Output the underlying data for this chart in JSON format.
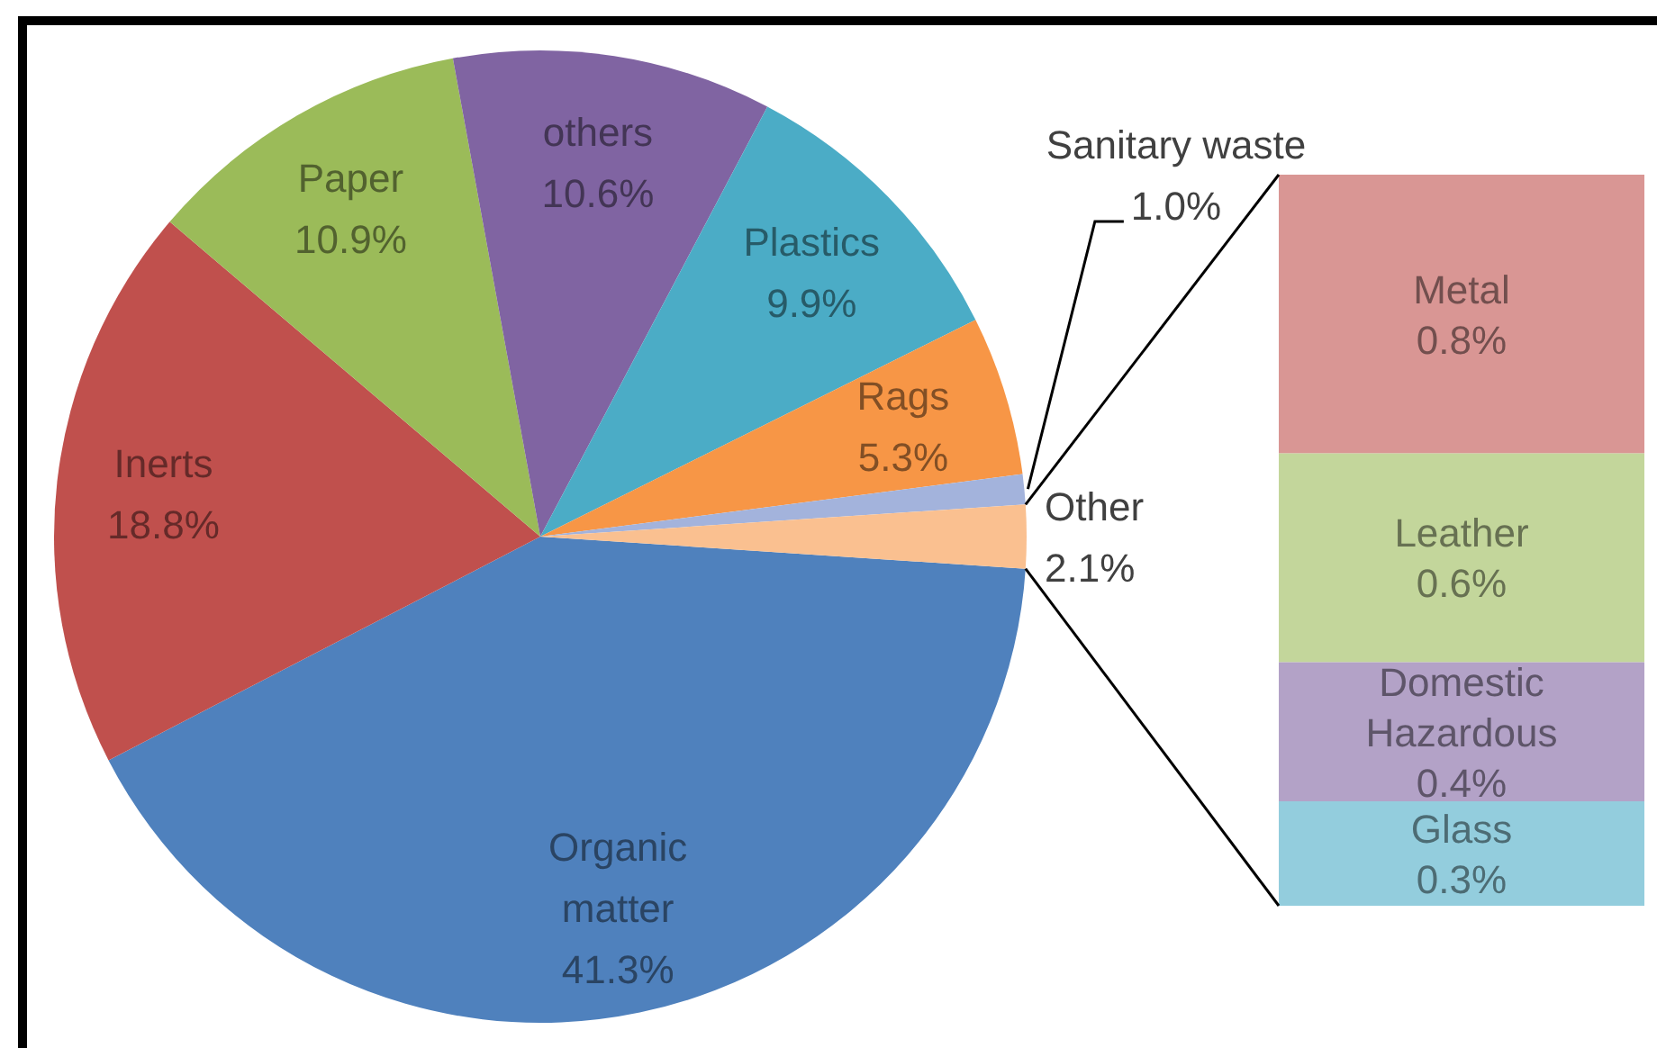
{
  "chart_data": [
    {
      "type": "pie",
      "categories": [
        "Organic matter",
        "Inerts",
        "Paper",
        "others",
        "Plastics",
        "Rags",
        "Sanitary waste",
        "Other"
      ],
      "values": [
        41.3,
        18.8,
        10.9,
        10.6,
        9.9,
        5.3,
        1.0,
        2.1
      ],
      "colors": [
        "#4f81bd",
        "#c0504d",
        "#9bbb59",
        "#8064a2",
        "#4bacc6",
        "#f79646",
        "#a3b3dc",
        "#fac090"
      ],
      "value_labels": [
        "41.3%",
        "18.8%",
        "10.9%",
        "10.6%",
        "9.9%",
        "5.3%",
        "1.0%",
        "2.1%"
      ]
    },
    {
      "type": "bar",
      "stacked": true,
      "categories": [
        null
      ],
      "series": [
        {
          "name": "Glass",
          "color": "#93cddd",
          "values": [
            0.3
          ],
          "value_labels": [
            "0.3%"
          ]
        },
        {
          "name": "Domestic Hazardous",
          "color": "#b3a2c7",
          "values": [
            0.4
          ],
          "value_labels": [
            "0.4%"
          ]
        },
        {
          "name": "Leather",
          "color": "#c3d69b",
          "values": [
            0.6
          ],
          "value_labels": [
            "0.6%"
          ]
        },
        {
          "name": "Metal",
          "color": "#d99694",
          "values": [
            0.8
          ],
          "value_labels": [
            "0.8%"
          ]
        }
      ]
    }
  ]
}
